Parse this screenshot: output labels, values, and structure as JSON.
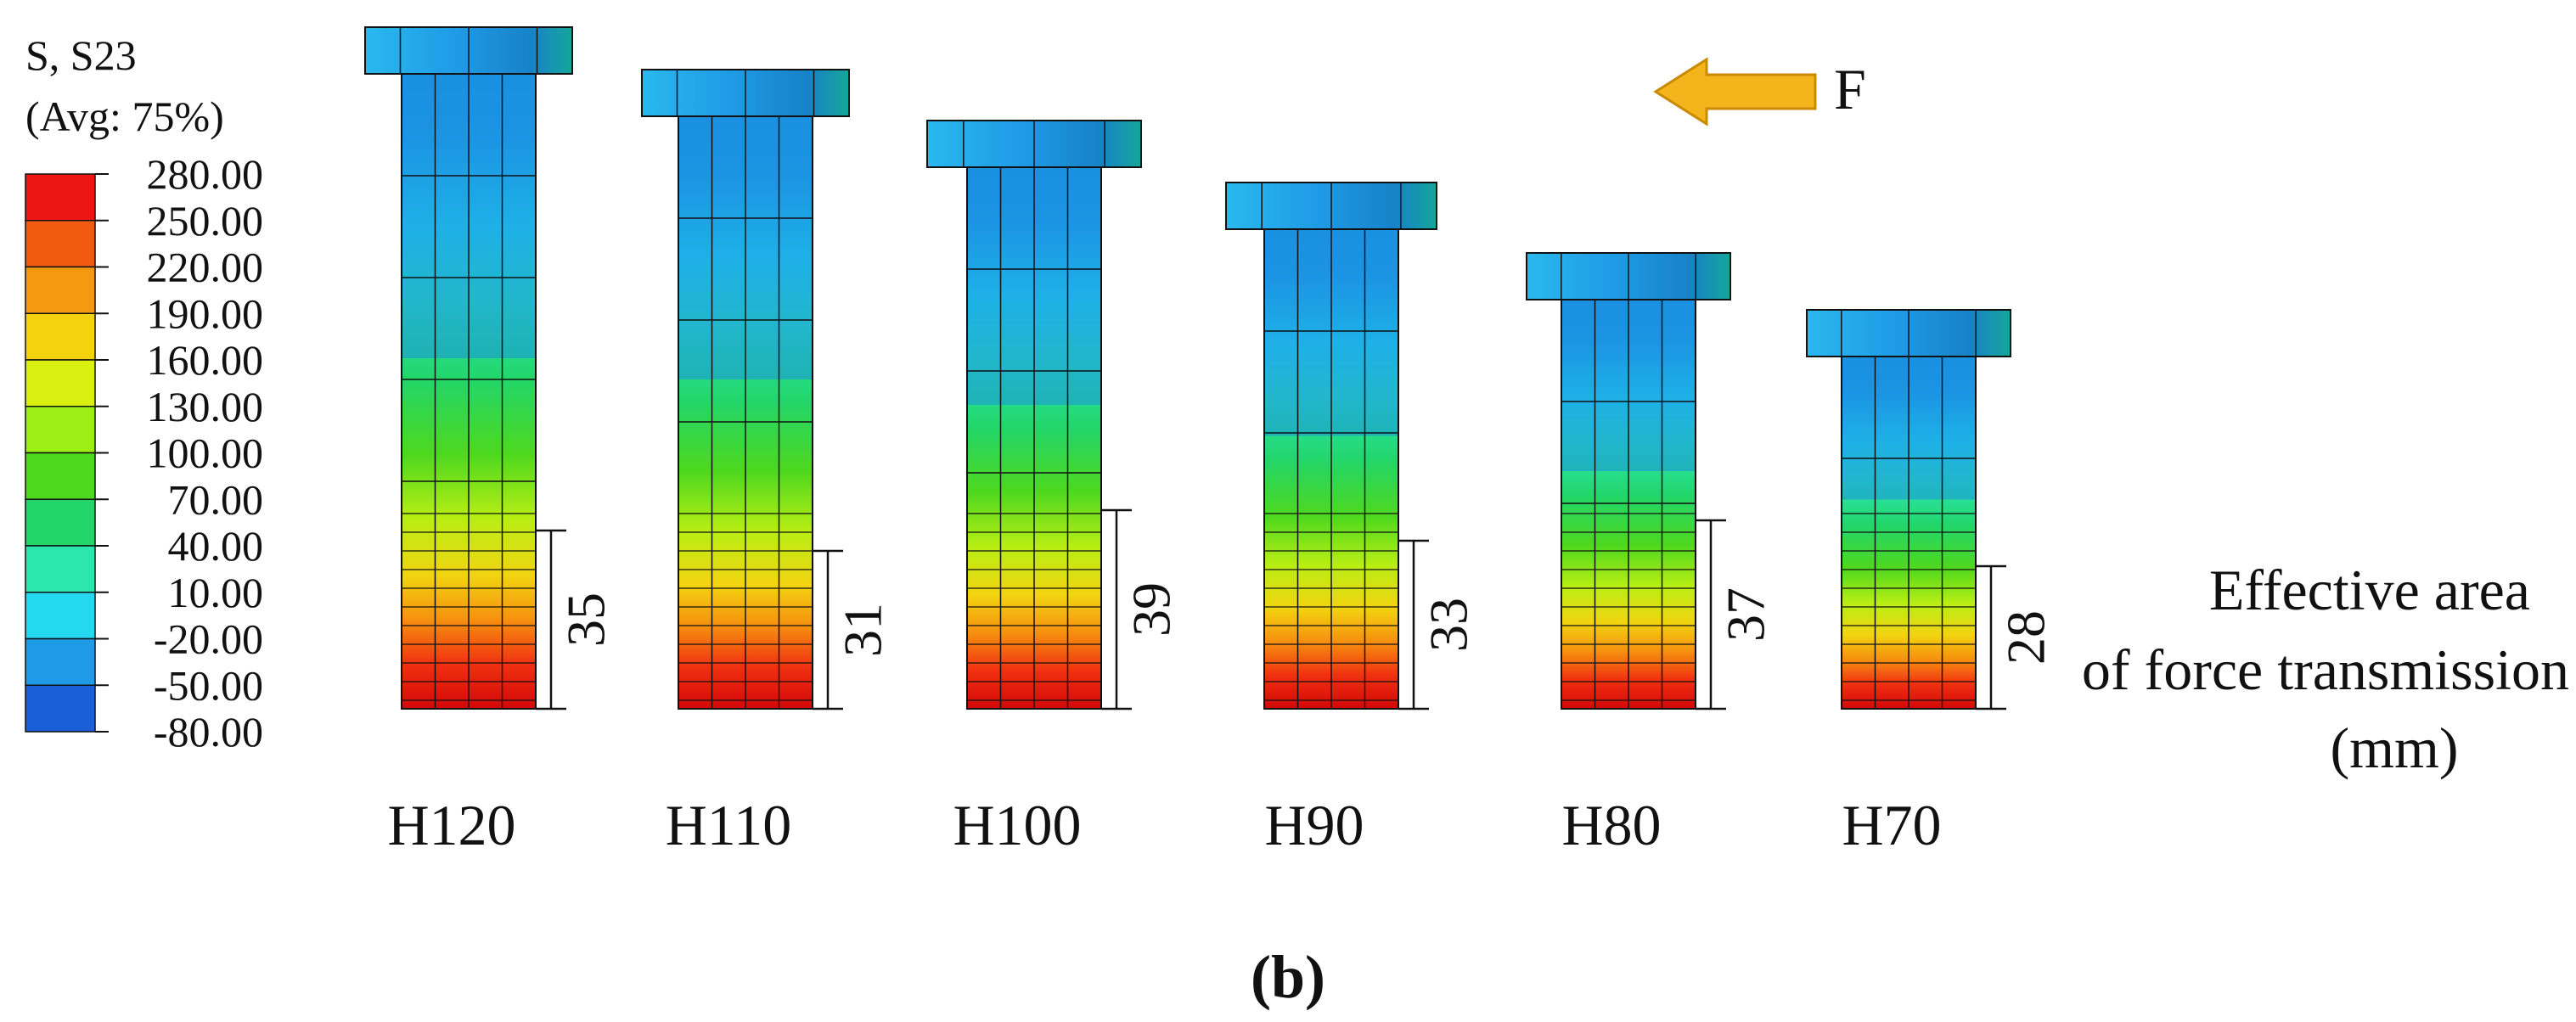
{
  "legend": {
    "title_line1": "S, S23",
    "title_line2": "(Avg: 75%)",
    "levels": [
      "280.00",
      "250.00",
      "220.00",
      "190.00",
      "160.00",
      "130.00",
      "100.00",
      "70.00",
      "40.00",
      "10.00",
      "-20.00",
      "-50.00",
      "-80.00"
    ],
    "band_colors": [
      "#ee1515",
      "#f25a0f",
      "#f59a10",
      "#f4d20e",
      "#daf010",
      "#9cee14",
      "#4ed81e",
      "#22d66a",
      "#2ce6b0",
      "#24d8f0",
      "#1e9ae6",
      "#1a5fd8",
      "#0b22e6"
    ]
  },
  "force": {
    "label": "F",
    "arrow_color": "#f4b51c",
    "arrow_stroke": "#c88a00"
  },
  "specimens": [
    {
      "name": "H120",
      "effective_length": "35"
    },
    {
      "name": "H110",
      "effective_length": "31"
    },
    {
      "name": "H100",
      "effective_length": "39"
    },
    {
      "name": "H90",
      "effective_length": "33"
    },
    {
      "name": "H80",
      "effective_length": "37"
    },
    {
      "name": "H70",
      "effective_length": "28"
    }
  ],
  "annotation": {
    "line1": "Effective area",
    "line2": "of force transmission",
    "line3": "(mm)"
  },
  "figure_label": "(b)"
}
